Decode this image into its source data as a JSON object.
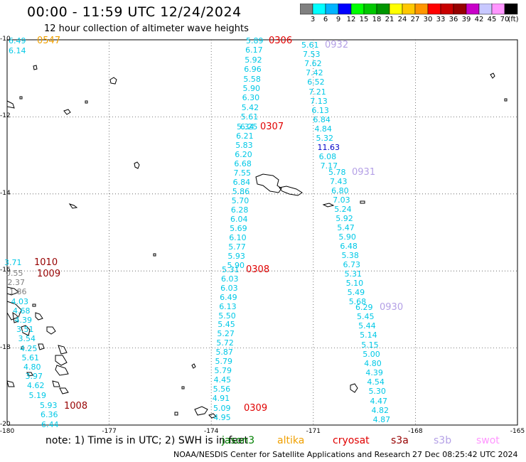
{
  "header": {
    "title": "00:00 - 11:59 UTC 12/24/2024",
    "subtitle": "12 hour collection of altimeter wave heights"
  },
  "colorbar": {
    "unit": "(ft)",
    "colors": [
      "#808080",
      "#00ffff",
      "#00b4ff",
      "#0000ff",
      "#00ff00",
      "#00c800",
      "#009600",
      "#ffff00",
      "#ffc800",
      "#ff9600",
      "#ff0000",
      "#c80000",
      "#960000",
      "#c800c8",
      "#c8c8ff",
      "#ff96ff",
      "#000000"
    ],
    "labels": [
      "3",
      "6",
      "9",
      "12",
      "15",
      "18",
      "21",
      "24",
      "27",
      "30",
      "33",
      "36",
      "39",
      "42",
      "45",
      "70"
    ]
  },
  "axes": {
    "y_labels": [
      "-10",
      "-12",
      "-14",
      "-16",
      "-18",
      "-20"
    ],
    "x_labels": [
      "-180",
      "-177",
      "-174",
      "-171",
      "-168",
      "-165"
    ]
  },
  "tracks": [
    {
      "time": "0306",
      "time_color": "#e00000",
      "points": [
        [
          "5.89",
          "#00c8e6"
        ],
        [
          "6.17",
          "#00c8e6"
        ],
        [
          "5.92",
          "#00c8e6"
        ],
        [
          "6.96",
          "#00c8e6"
        ],
        [
          "5.58",
          "#00c8e6"
        ],
        [
          "5.90",
          "#00c8e6"
        ],
        [
          "6.30",
          "#00c8e6"
        ],
        [
          "5.42",
          "#00c8e6"
        ],
        [
          "5.61",
          "#00c8e6"
        ],
        [
          "6.25",
          "#00c8e6"
        ]
      ]
    },
    {
      "time": "0307",
      "time_color": "#e00000",
      "points": [
        [
          "5.34",
          "#00c8e6"
        ],
        [
          "6.21",
          "#00c8e6"
        ],
        [
          "5.83",
          "#00c8e6"
        ],
        [
          "6.20",
          "#00c8e6"
        ],
        [
          "6.68",
          "#00c8e6"
        ],
        [
          "7.55",
          "#00c8e6"
        ],
        [
          "6.84",
          "#00c8e6"
        ],
        [
          "5.86",
          "#00c8e6"
        ],
        [
          "5.70",
          "#00c8e6"
        ],
        [
          "6.28",
          "#00c8e6"
        ],
        [
          "6.04",
          "#00c8e6"
        ],
        [
          "5.69",
          "#00c8e6"
        ],
        [
          "6.10",
          "#00c8e6"
        ],
        [
          "5.77",
          "#00c8e6"
        ],
        [
          "5.93",
          "#00c8e6"
        ],
        [
          "5.90",
          "#00c8e6"
        ]
      ]
    },
    {
      "time": "0308",
      "time_color": "#e00000",
      "points": [
        [
          "5.31",
          "#00c8e6"
        ],
        [
          "6.03",
          "#00c8e6"
        ],
        [
          "6.03",
          "#00c8e6"
        ],
        [
          "6.49",
          "#00c8e6"
        ],
        [
          "6.13",
          "#00c8e6"
        ],
        [
          "5.50",
          "#00c8e6"
        ],
        [
          "5.45",
          "#00c8e6"
        ],
        [
          "5.27",
          "#00c8e6"
        ],
        [
          "5.72",
          "#00c8e6"
        ],
        [
          "5.87",
          "#00c8e6"
        ],
        [
          "5.79",
          "#00c8e6"
        ],
        [
          "5.79",
          "#00c8e6"
        ],
        [
          "4.45",
          "#00c8e6"
        ],
        [
          "5.56",
          "#00c8e6"
        ],
        [
          "4.91",
          "#00c8e6"
        ]
      ]
    },
    {
      "time": "0309",
      "time_color": "#e00000",
      "points": [
        [
          "5.09",
          "#00c8e6"
        ],
        [
          "4.95",
          "#00c8e6"
        ]
      ]
    },
    {
      "time": "0932",
      "time_color": "#b4a0e6",
      "points": [
        [
          "5.61",
          "#00c8e6"
        ],
        [
          "7.53",
          "#00c8e6"
        ],
        [
          "7.62",
          "#00c8e6"
        ],
        [
          "7.42",
          "#00c8e6"
        ],
        [
          "6.52",
          "#00c8e6"
        ],
        [
          "7.21",
          "#00c8e6"
        ],
        [
          "7.13",
          "#00c8e6"
        ],
        [
          "6.13",
          "#00c8e6"
        ],
        [
          "6.84",
          "#00c8e6"
        ],
        [
          "4.84",
          "#00c8e6"
        ],
        [
          "5.32",
          "#00c8e6"
        ],
        [
          "11.63",
          "#0000c8"
        ],
        [
          "6.08",
          "#00c8e6"
        ],
        [
          "7.17",
          "#00c8e6"
        ]
      ]
    },
    {
      "time": "0931",
      "time_color": "#b4a0e6",
      "points": [
        [
          "5.78",
          "#00c8e6"
        ],
        [
          "7.43",
          "#00c8e6"
        ],
        [
          "6.80",
          "#00c8e6"
        ],
        [
          "7.03",
          "#00c8e6"
        ],
        [
          "5.24",
          "#00c8e6"
        ],
        [
          "5.92",
          "#00c8e6"
        ],
        [
          "5.47",
          "#00c8e6"
        ],
        [
          "5.90",
          "#00c8e6"
        ],
        [
          "6.48",
          "#00c8e6"
        ],
        [
          "5.38",
          "#00c8e6"
        ],
        [
          "6.73",
          "#00c8e6"
        ],
        [
          "5.31",
          "#00c8e6"
        ],
        [
          "5.10",
          "#00c8e6"
        ],
        [
          "5.49",
          "#00c8e6"
        ],
        [
          "5.68",
          "#00c8e6"
        ]
      ]
    },
    {
      "time": "0930",
      "time_color": "#b4a0e6",
      "points": [
        [
          "6.29",
          "#00c8e6"
        ],
        [
          "5.45",
          "#00c8e6"
        ],
        [
          "5.44",
          "#00c8e6"
        ],
        [
          "5.14",
          "#00c8e6"
        ],
        [
          "5.15",
          "#00c8e6"
        ],
        [
          "5.00",
          "#00c8e6"
        ],
        [
          "4.80",
          "#00c8e6"
        ],
        [
          "4.39",
          "#00c8e6"
        ],
        [
          "4.54",
          "#00c8e6"
        ],
        [
          "5.30",
          "#00c8e6"
        ],
        [
          "4.47",
          "#00c8e6"
        ],
        [
          "4.82",
          "#00c8e6"
        ],
        [
          "4.87",
          "#00c8e6"
        ]
      ]
    },
    {
      "time": "0547",
      "time_color": "#f0a000",
      "points": [
        [
          "6.49",
          "#00c8e6"
        ],
        [
          "6.14",
          "#00c8e6"
        ]
      ]
    },
    {
      "time": "1010",
      "time_color": "#960000",
      "points": [
        [
          "3.71",
          "#00c8e6"
        ]
      ]
    },
    {
      "time": "1009",
      "time_color": "#960000",
      "points": [
        [
          "0.55",
          "#808080"
        ],
        [
          "2.37",
          "#808080"
        ],
        [
          "1.86",
          "#808080"
        ],
        [
          "4.03",
          "#00c8e6"
        ],
        [
          "4.68",
          "#00c8e6"
        ],
        [
          "4.39",
          "#00c8e6"
        ],
        [
          "3.51",
          "#00c8e6"
        ],
        [
          "3.54",
          "#00c8e6"
        ],
        [
          "4.25",
          "#00c8e6"
        ],
        [
          "5.61",
          "#00c8e6"
        ],
        [
          "4.80",
          "#00c8e6"
        ],
        [
          "3.97",
          "#00c8e6"
        ],
        [
          "4.62",
          "#00c8e6"
        ],
        [
          "5.19",
          "#00c8e6"
        ]
      ]
    },
    {
      "time": "1008",
      "time_color": "#960000",
      "points": [
        [
          "5.93",
          "#00c8e6"
        ],
        [
          "6.36",
          "#00c8e6"
        ],
        [
          "6.44",
          "#00c8e6"
        ]
      ]
    }
  ],
  "footer": {
    "note": "note:  1) Time is in UTC; 2) SWH is in feet",
    "satellites": [
      {
        "name": "jason3",
        "color": "#008000"
      },
      {
        "name": "altika",
        "color": "#f0a000"
      },
      {
        "name": "cryosat",
        "color": "#e00000"
      },
      {
        "name": "s3a",
        "color": "#960000"
      },
      {
        "name": "s3b",
        "color": "#b4a0e6"
      },
      {
        "name": "swot",
        "color": "#ff96ff"
      }
    ],
    "credit": "NOAA/NESDIS Center for Satellite Applications and Research",
    "timestamp": "27 Dec 08:25:42 UTC 2024"
  }
}
